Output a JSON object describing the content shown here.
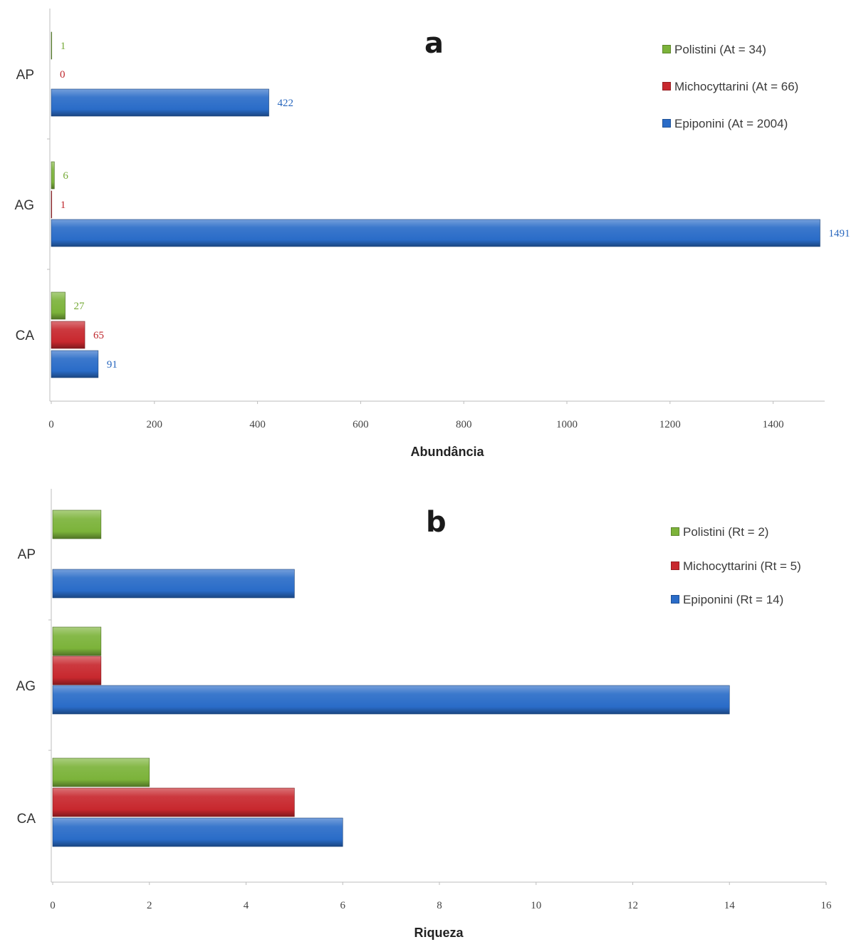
{
  "colors": {
    "Polistini": "#7cb33a",
    "Michocyttarini": "#c8282e",
    "Epiponini": "#2a6cc8"
  },
  "chart_data": [
    {
      "type": "bar",
      "orientation": "horizontal",
      "panel_letter": "a",
      "xlabel": "Abundância",
      "xlim": [
        0,
        1500
      ],
      "xticks": [
        0,
        200,
        400,
        600,
        800,
        1000,
        1200,
        1400
      ],
      "xtick_labels": [
        "0",
        "200",
        "400",
        "600",
        "800",
        "1000",
        "1200",
        "1400"
      ],
      "categories": [
        "AP",
        "AG",
        "CA"
      ],
      "data_labels": true,
      "legend_position": "top-right",
      "series": [
        {
          "name": "Polistini (At = 34)",
          "group": "Polistini",
          "values": [
            1,
            6,
            27
          ]
        },
        {
          "name": "Michocyttarini (At = 66)",
          "group": "Michocyttarini",
          "values": [
            0,
            1,
            65
          ]
        },
        {
          "name": "Epiponini (At = 2004)",
          "group": "Epiponini",
          "values": [
            422,
            1491,
            91
          ]
        }
      ]
    },
    {
      "type": "bar",
      "orientation": "horizontal",
      "panel_letter": "b",
      "xlabel": "Riqueza",
      "xlim": [
        0,
        16
      ],
      "xticks": [
        0,
        2,
        4,
        6,
        8,
        10,
        12,
        14,
        16
      ],
      "xtick_labels": [
        "0",
        "2",
        "4",
        "6",
        "8",
        "10",
        "12",
        "14",
        "16"
      ],
      "categories": [
        "AP",
        "AG",
        "CA"
      ],
      "data_labels": false,
      "legend_position": "top-right",
      "series": [
        {
          "name": "Polistini (Rt = 2)",
          "group": "Polistini",
          "values": [
            1,
            1,
            2
          ]
        },
        {
          "name": "Michocyttarini (Rt = 5)",
          "group": "Michocyttarini",
          "values": [
            0,
            1,
            5
          ]
        },
        {
          "name": "Epiponini (Rt = 14)",
          "group": "Epiponini",
          "values": [
            5,
            14,
            6
          ]
        }
      ]
    }
  ]
}
